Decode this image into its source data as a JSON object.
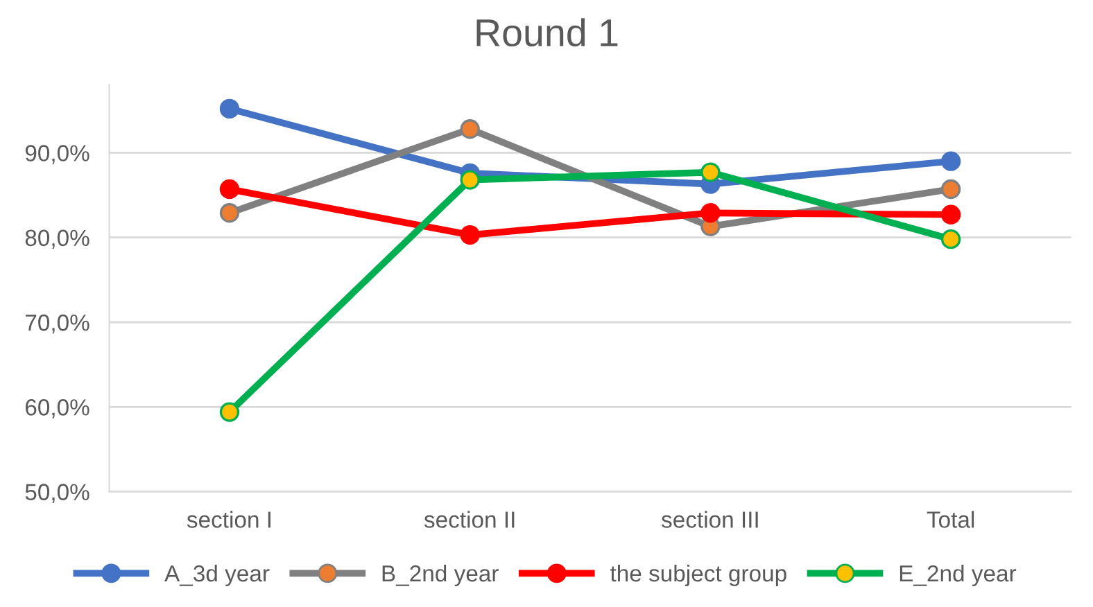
{
  "chart_data": {
    "type": "line",
    "title": "Round 1",
    "categories": [
      "section I",
      "section II",
      "section III",
      "Total"
    ],
    "series": [
      {
        "name": "A_3d year",
        "color": "#4472c4",
        "colors": [
          "#4472c4",
          "#4472c4",
          "#4472c4",
          "#4472c4"
        ],
        "values": [
          95.2,
          87.6,
          86.3,
          89.0
        ]
      },
      {
        "name": "B_2nd year",
        "color": "#808080",
        "colors": [
          "#ed7d31",
          "#ed7d31",
          "#ed7d31",
          "#ed7d31"
        ],
        "values": [
          82.9,
          92.8,
          81.3,
          85.7
        ]
      },
      {
        "name": "the subject group",
        "color": "#ff0000",
        "colors": [
          "#ff0000",
          "#ff0000",
          "#ff0000",
          "#ff0000"
        ],
        "values": [
          85.7,
          80.3,
          82.9,
          82.7
        ]
      },
      {
        "name": "E_2nd year",
        "color": "#00b050",
        "colors": [
          "#ffc000",
          "#ffc000",
          "#ffc000",
          "#ffc000"
        ],
        "values": [
          59.4,
          86.8,
          87.7,
          79.8
        ]
      }
    ],
    "ylim": [
      50,
      98
    ],
    "yticks": [
      {
        "value": 50,
        "label": "50,0%"
      },
      {
        "value": 60,
        "label": "60,0%"
      },
      {
        "value": 70,
        "label": "70,0%"
      },
      {
        "value": 80,
        "label": "80,0%"
      },
      {
        "value": 90,
        "label": "90,0%"
      }
    ],
    "grid": "y",
    "legend": "bottom",
    "marker": "circle",
    "line_style": "solid"
  }
}
